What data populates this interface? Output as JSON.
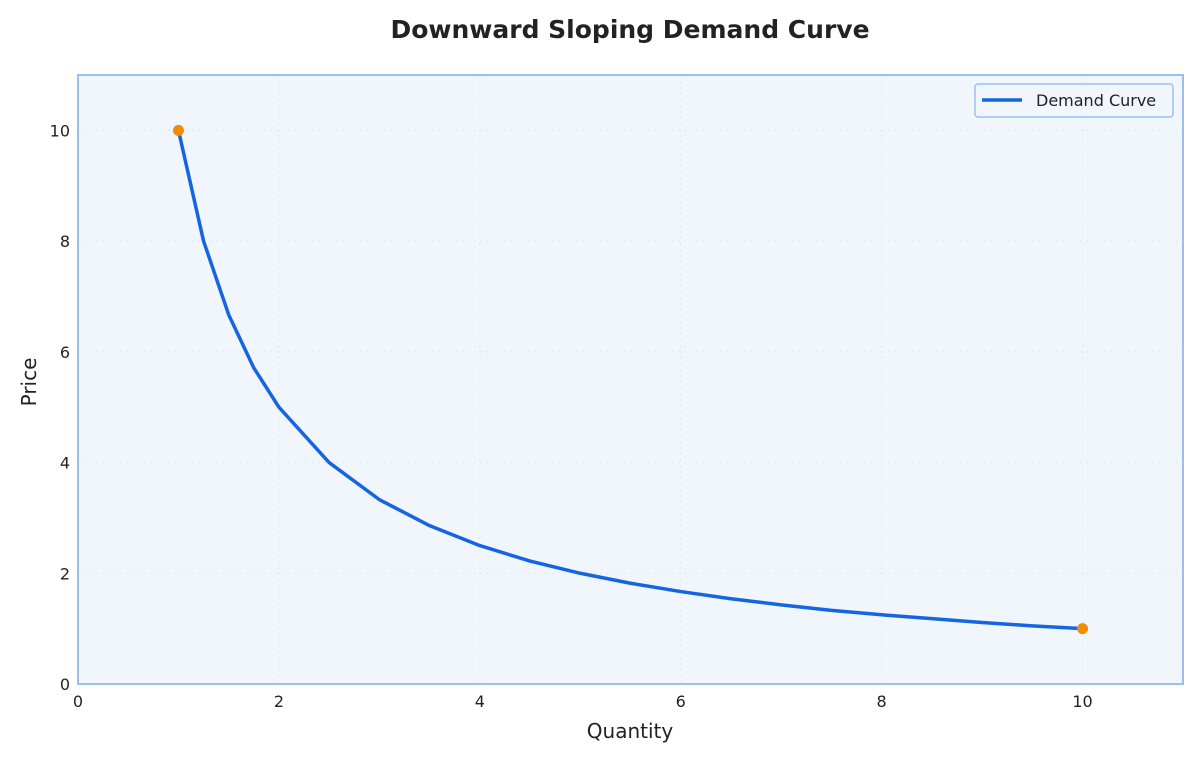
{
  "chart_data": {
    "type": "line",
    "title": "Downward Sloping Demand Curve",
    "xlabel": "Quantity",
    "ylabel": "Price",
    "xlim": [
      0,
      11
    ],
    "ylim": [
      0,
      11
    ],
    "x_ticks": [
      0,
      2,
      4,
      6,
      8,
      10
    ],
    "y_ticks": [
      0,
      2,
      4,
      6,
      8,
      10
    ],
    "grid": true,
    "legend_position": "top-right",
    "series": [
      {
        "name": "Demand Curve",
        "color": "#1565e0",
        "x": [
          1,
          1.25,
          1.5,
          1.75,
          2,
          2.5,
          3,
          3.5,
          4,
          4.5,
          5,
          5.5,
          6,
          6.5,
          7,
          7.5,
          8,
          8.5,
          9,
          9.5,
          10
        ],
        "y": [
          10,
          8,
          6.67,
          5.71,
          5,
          4,
          3.33,
          2.86,
          2.5,
          2.22,
          2,
          1.82,
          1.67,
          1.54,
          1.43,
          1.33,
          1.25,
          1.18,
          1.11,
          1.05,
          1
        ]
      }
    ],
    "markers": {
      "color": "#f28c00",
      "points": [
        {
          "x": 1,
          "y": 10
        },
        {
          "x": 10,
          "y": 1
        }
      ]
    },
    "colors": {
      "plot_background": "#f1f6fc",
      "plot_border": "#9dbff0",
      "grid": "#dde6f2"
    }
  }
}
